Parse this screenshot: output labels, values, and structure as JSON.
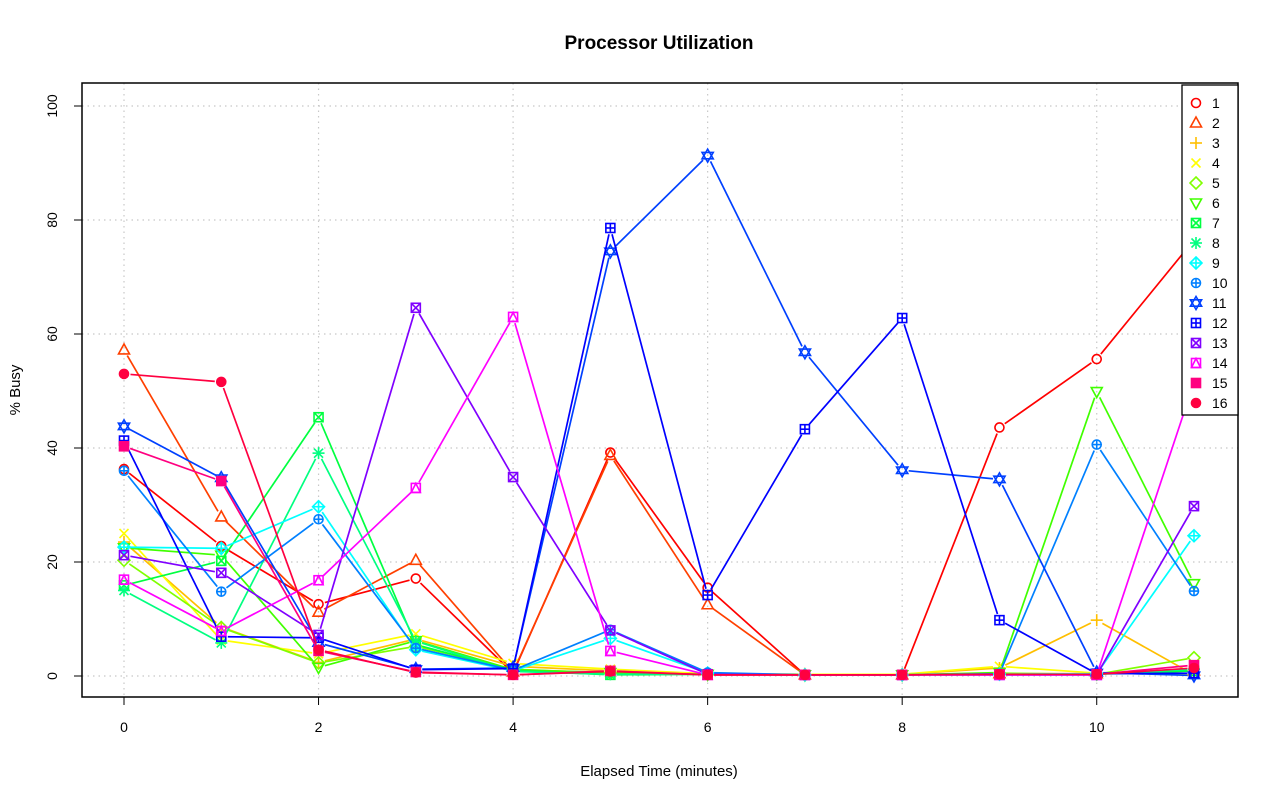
{
  "chart_data": {
    "type": "line",
    "title": "Processor Utilization",
    "xlabel": "Elapsed Time (minutes)",
    "ylabel": "% Busy",
    "xlim": [
      0,
      11
    ],
    "ylim": [
      0,
      100
    ],
    "xticks": [
      0,
      2,
      4,
      6,
      8,
      10
    ],
    "yticks": [
      0,
      20,
      40,
      60,
      80,
      100
    ],
    "grid": true,
    "legend_position": "top-right",
    "x": [
      0,
      1,
      2,
      3,
      4,
      5,
      6,
      7,
      8,
      9,
      10,
      11
    ],
    "series": [
      {
        "name": "1",
        "color": "#ff0000",
        "marker": "circle-open",
        "values": [
          36.3,
          22.8,
          12.6,
          17.1,
          0.5,
          39.2,
          15.5,
          0.2,
          0.2,
          43.6,
          55.6,
          76.5
        ]
      },
      {
        "name": "2",
        "color": "#ff4000",
        "marker": "triangle-up",
        "values": [
          57.2,
          27.9,
          11.2,
          20.3,
          0.7,
          38.7,
          12.5,
          0.2,
          0.2,
          0.4,
          0.4,
          0.9
        ]
      },
      {
        "name": "3",
        "color": "#ffbf00",
        "marker": "plus",
        "values": [
          23.5,
          8.6,
          2.4,
          6.5,
          1.7,
          0.9,
          0.4,
          0.3,
          0.3,
          1.4,
          9.8,
          0.2
        ]
      },
      {
        "name": "4",
        "color": "#ffff00",
        "marker": "cross",
        "values": [
          25.0,
          6.3,
          3.9,
          7.4,
          2.2,
          1.2,
          0.4,
          0.3,
          0.3,
          1.7,
          0.5,
          0.4
        ]
      },
      {
        "name": "5",
        "color": "#80ff00",
        "marker": "diamond",
        "values": [
          20.3,
          8.5,
          2.3,
          5.2,
          1.2,
          0.5,
          0.3,
          0.2,
          0.2,
          0.5,
          0.3,
          3.2
        ]
      },
      {
        "name": "6",
        "color": "#40ff00",
        "marker": "triangle-down",
        "values": [
          22.5,
          21.2,
          1.5,
          6.2,
          1.1,
          0.6,
          0.3,
          0.2,
          0.2,
          0.6,
          49.9,
          16.2
        ]
      },
      {
        "name": "7",
        "color": "#00ff40",
        "marker": "square-x",
        "values": [
          15.9,
          20.2,
          45.4,
          5.5,
          1.0,
          0.2,
          0.3,
          0.2,
          0.2,
          0.3,
          0.3,
          0.9
        ]
      },
      {
        "name": "8",
        "color": "#00ff80",
        "marker": "asterisk",
        "values": [
          15.0,
          5.8,
          39.1,
          6.1,
          0.8,
          0.3,
          0.3,
          0.2,
          0.2,
          0.3,
          0.3,
          1.2
        ]
      },
      {
        "name": "9",
        "color": "#00ffff",
        "marker": "diamond-plus",
        "values": [
          22.6,
          22.4,
          29.7,
          4.6,
          0.9,
          6.6,
          0.5,
          0.2,
          0.2,
          0.3,
          0.4,
          24.6
        ]
      },
      {
        "name": "10",
        "color": "#0080ff",
        "marker": "circle-plus",
        "values": [
          36.0,
          14.8,
          27.5,
          4.9,
          1.0,
          8.1,
          0.6,
          0.2,
          0.2,
          0.4,
          40.6,
          14.9
        ]
      },
      {
        "name": "11",
        "color": "#0040ff",
        "marker": "star-of-david",
        "values": [
          43.8,
          34.7,
          5.8,
          1.2,
          1.4,
          74.5,
          91.3,
          56.8,
          36.1,
          34.5,
          0.6,
          0.1
        ]
      },
      {
        "name": "12",
        "color": "#0000ff",
        "marker": "square-plus",
        "values": [
          41.3,
          6.9,
          6.7,
          1.1,
          1.3,
          78.6,
          14.2,
          43.3,
          62.8,
          9.8,
          0.4,
          0.5
        ]
      },
      {
        "name": "13",
        "color": "#8000ff",
        "marker": "square-x",
        "values": [
          21.2,
          18.1,
          7.2,
          64.6,
          34.9,
          8.0,
          0.3,
          0.2,
          0.2,
          0.2,
          0.2,
          29.8
        ]
      },
      {
        "name": "14",
        "color": "#ff00ff",
        "marker": "square-triangle",
        "values": [
          16.9,
          7.9,
          16.8,
          33.0,
          63.0,
          4.4,
          0.2,
          0.2,
          0.2,
          0.2,
          0.2,
          51.5
        ]
      },
      {
        "name": "15",
        "color": "#ff0080",
        "marker": "square-filled",
        "values": [
          40.3,
          34.2,
          4.4,
          0.7,
          0.2,
          0.9,
          0.2,
          0.2,
          0.2,
          0.3,
          0.3,
          1.9
        ]
      },
      {
        "name": "16",
        "color": "#ff0040",
        "marker": "circle-filled",
        "values": [
          53.0,
          51.6,
          4.6,
          0.6,
          0.2,
          0.8,
          0.2,
          0.2,
          0.2,
          0.3,
          0.3,
          1.4
        ]
      }
    ]
  }
}
